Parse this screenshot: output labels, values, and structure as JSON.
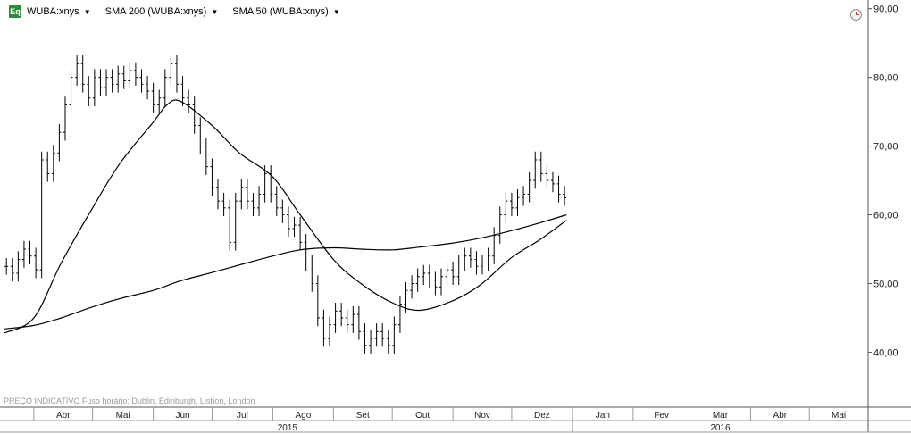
{
  "header": {
    "icon_label": "Eq",
    "legend": [
      {
        "label": "WUBA:xnys"
      },
      {
        "label": "SMA 200 (WUBA:xnys)"
      },
      {
        "label": "SMA 50 (WUBA:xnys)"
      }
    ]
  },
  "footer": {
    "note": "PREÇO INDICATIVO   Fuso horário: Dublin, Edinburgh, Lisbon, London"
  },
  "chart_data": {
    "type": "line",
    "y_axis": {
      "position": "right",
      "ylim": [
        32,
        91
      ],
      "ticks": [
        {
          "value": 40,
          "label": "40,00"
        },
        {
          "value": 50,
          "label": "50,00"
        },
        {
          "value": 60,
          "label": "60,00"
        },
        {
          "value": 70,
          "label": "70,00"
        },
        {
          "value": 80,
          "label": "80,00"
        },
        {
          "value": 90,
          "label": "90,00"
        }
      ]
    },
    "x_axis": {
      "start": "2015-03-17",
      "end": "2016-05-31",
      "months": [
        {
          "label": "Abr",
          "start": "2015-04-01"
        },
        {
          "label": "Mai",
          "start": "2015-05-01"
        },
        {
          "label": "Jun",
          "start": "2015-06-01"
        },
        {
          "label": "Jul",
          "start": "2015-07-01"
        },
        {
          "label": "Ago",
          "start": "2015-08-01"
        },
        {
          "label": "Set",
          "start": "2015-09-01"
        },
        {
          "label": "Out",
          "start": "2015-10-01"
        },
        {
          "label": "Nov",
          "start": "2015-11-01"
        },
        {
          "label": "Dez",
          "start": "2015-12-01"
        },
        {
          "label": "Jan",
          "start": "2016-01-01"
        },
        {
          "label": "Fev",
          "start": "2016-02-01"
        },
        {
          "label": "Mar",
          "start": "2016-03-01"
        },
        {
          "label": "Abr",
          "start": "2016-04-01"
        },
        {
          "label": "Mai",
          "start": "2016-05-01"
        }
      ],
      "years": [
        {
          "label": "2015",
          "start": "2015-03-17",
          "end": "2015-12-31"
        },
        {
          "label": "2016",
          "start": "2016-01-01",
          "end": "2016-05-31"
        }
      ]
    },
    "grid": false,
    "price_series": {
      "name": "WUBA:xnys",
      "style": "ohlc-bars",
      "points": [
        [
          "2015-03-18",
          52.5
        ],
        [
          "2015-03-21",
          51.5
        ],
        [
          "2015-03-24",
          53.5
        ],
        [
          "2015-03-27",
          55.0
        ],
        [
          "2015-03-30",
          54.0
        ],
        [
          "2015-04-02",
          52.0
        ],
        [
          "2015-04-05",
          68.0
        ],
        [
          "2015-04-08",
          66.0
        ],
        [
          "2015-04-11",
          69.0
        ],
        [
          "2015-04-14",
          72.0
        ],
        [
          "2015-04-17",
          76.0
        ],
        [
          "2015-04-20",
          80.0
        ],
        [
          "2015-04-23",
          82.0
        ],
        [
          "2015-04-26",
          79.0
        ],
        [
          "2015-04-29",
          77.0
        ],
        [
          "2015-05-02",
          80.0
        ],
        [
          "2015-05-05",
          78.5
        ],
        [
          "2015-05-08",
          80.0
        ],
        [
          "2015-05-11",
          79.0
        ],
        [
          "2015-05-14",
          80.5
        ],
        [
          "2015-05-17",
          79.5
        ],
        [
          "2015-05-20",
          81.0
        ],
        [
          "2015-05-23",
          80.0
        ],
        [
          "2015-05-26",
          79.0
        ],
        [
          "2015-05-29",
          78.0
        ],
        [
          "2015-06-01",
          76.0
        ],
        [
          "2015-06-04",
          77.0
        ],
        [
          "2015-06-07",
          80.0
        ],
        [
          "2015-06-10",
          82.0
        ],
        [
          "2015-06-13",
          79.0
        ],
        [
          "2015-06-16",
          77.0
        ],
        [
          "2015-06-19",
          76.0
        ],
        [
          "2015-06-22",
          73.0
        ],
        [
          "2015-06-25",
          70.0
        ],
        [
          "2015-06-28",
          67.0
        ],
        [
          "2015-07-01",
          64.0
        ],
        [
          "2015-07-04",
          62.0
        ],
        [
          "2015-07-07",
          61.0
        ],
        [
          "2015-07-10",
          56.0
        ],
        [
          "2015-07-13",
          62.0
        ],
        [
          "2015-07-16",
          64.0
        ],
        [
          "2015-07-19",
          62.0
        ],
        [
          "2015-07-22",
          61.0
        ],
        [
          "2015-07-25",
          63.0
        ],
        [
          "2015-07-28",
          66.0
        ],
        [
          "2015-07-31",
          63.0
        ],
        [
          "2015-08-03",
          61.0
        ],
        [
          "2015-08-06",
          60.0
        ],
        [
          "2015-08-09",
          58.0
        ],
        [
          "2015-08-12",
          58.5
        ],
        [
          "2015-08-15",
          56.0
        ],
        [
          "2015-08-18",
          53.0
        ],
        [
          "2015-08-21",
          50.0
        ],
        [
          "2015-08-24",
          45.0
        ],
        [
          "2015-08-27",
          42.0
        ],
        [
          "2015-08-30",
          44.0
        ],
        [
          "2015-09-02",
          46.0
        ],
        [
          "2015-09-05",
          45.0
        ],
        [
          "2015-09-08",
          44.0
        ],
        [
          "2015-09-11",
          45.5
        ],
        [
          "2015-09-14",
          43.0
        ],
        [
          "2015-09-17",
          41.0
        ],
        [
          "2015-09-20",
          42.0
        ],
        [
          "2015-09-23",
          43.0
        ],
        [
          "2015-09-26",
          42.0
        ],
        [
          "2015-09-29",
          41.0
        ],
        [
          "2015-10-02",
          44.0
        ],
        [
          "2015-10-05",
          47.0
        ],
        [
          "2015-10-08",
          49.0
        ],
        [
          "2015-10-11",
          50.0
        ],
        [
          "2015-10-14",
          51.0
        ],
        [
          "2015-10-17",
          51.5
        ],
        [
          "2015-10-20",
          50.5
        ],
        [
          "2015-10-23",
          49.5
        ],
        [
          "2015-10-26",
          51.0
        ],
        [
          "2015-10-29",
          52.0
        ],
        [
          "2015-11-01",
          51.0
        ],
        [
          "2015-11-04",
          53.0
        ],
        [
          "2015-11-07",
          54.0
        ],
        [
          "2015-11-10",
          53.5
        ],
        [
          "2015-11-13",
          52.5
        ],
        [
          "2015-11-16",
          53.0
        ],
        [
          "2015-11-19",
          54.0
        ],
        [
          "2015-11-22",
          57.0
        ],
        [
          "2015-11-25",
          60.0
        ],
        [
          "2015-11-28",
          62.0
        ],
        [
          "2015-12-01",
          61.0
        ],
        [
          "2015-12-04",
          62.5
        ],
        [
          "2015-12-07",
          63.0
        ],
        [
          "2015-12-10",
          65.0
        ],
        [
          "2015-12-13",
          68.0
        ],
        [
          "2015-12-16",
          66.0
        ],
        [
          "2015-12-19",
          65.0
        ],
        [
          "2015-12-22",
          64.5
        ],
        [
          "2015-12-25",
          63.0
        ],
        [
          "2015-12-28",
          62.5
        ]
      ]
    },
    "series": [
      {
        "name": "SMA 200 (WUBA:xnys)",
        "points": [
          [
            "2015-03-17",
            43.4
          ],
          [
            "2015-04-01",
            43.9
          ],
          [
            "2015-04-15",
            45.0
          ],
          [
            "2015-05-01",
            46.6
          ],
          [
            "2015-05-15",
            47.8
          ],
          [
            "2015-06-01",
            49.0
          ],
          [
            "2015-06-15",
            50.4
          ],
          [
            "2015-07-01",
            51.6
          ],
          [
            "2015-07-15",
            52.7
          ],
          [
            "2015-08-01",
            54.0
          ],
          [
            "2015-08-15",
            54.9
          ],
          [
            "2015-09-01",
            55.2
          ],
          [
            "2015-09-15",
            55.0
          ],
          [
            "2015-10-01",
            54.9
          ],
          [
            "2015-10-15",
            55.3
          ],
          [
            "2015-11-01",
            55.9
          ],
          [
            "2015-11-15",
            56.6
          ],
          [
            "2015-12-01",
            57.7
          ],
          [
            "2015-12-15",
            58.8
          ],
          [
            "2015-12-29",
            60.0
          ]
        ]
      },
      {
        "name": "SMA 50 (WUBA:xnys)",
        "points": [
          [
            "2015-03-17",
            42.8
          ],
          [
            "2015-04-01",
            45.0
          ],
          [
            "2015-04-15",
            53.0
          ],
          [
            "2015-05-01",
            61.0
          ],
          [
            "2015-05-15",
            67.5
          ],
          [
            "2015-06-01",
            73.5
          ],
          [
            "2015-06-08",
            76.0
          ],
          [
            "2015-06-15",
            76.5
          ],
          [
            "2015-07-01",
            73.0
          ],
          [
            "2015-07-15",
            69.0
          ],
          [
            "2015-08-01",
            65.5
          ],
          [
            "2015-08-15",
            60.0
          ],
          [
            "2015-09-01",
            53.5
          ],
          [
            "2015-09-15",
            50.0
          ],
          [
            "2015-10-01",
            47.2
          ],
          [
            "2015-10-15",
            46.1
          ],
          [
            "2015-11-01",
            47.5
          ],
          [
            "2015-11-15",
            49.8
          ],
          [
            "2015-12-01",
            53.8
          ],
          [
            "2015-12-15",
            56.3
          ],
          [
            "2015-12-29",
            59.2
          ]
        ]
      }
    ]
  }
}
